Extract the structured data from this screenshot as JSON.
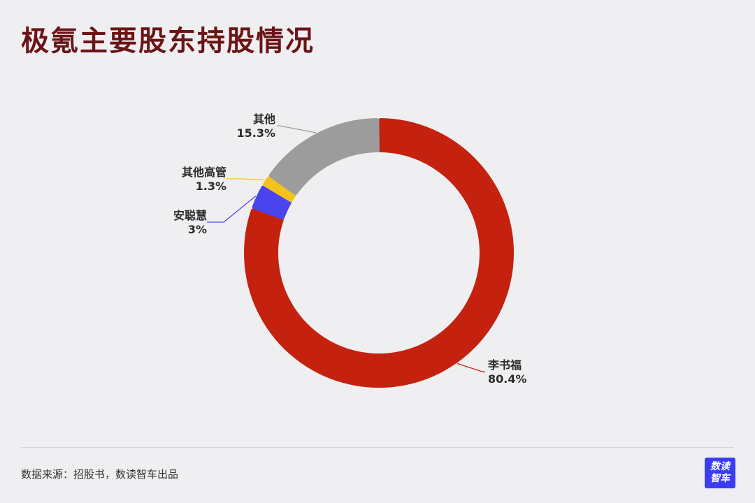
{
  "title": "极氪主要股东持股情况",
  "source": "数据来源：招股书，数读智车出品",
  "logo": {
    "line1": "数读",
    "line2": "智车"
  },
  "chart_data": {
    "type": "pie",
    "style": "donut",
    "title": "极氪主要股东持股情况",
    "slices": [
      {
        "name": "李书福",
        "label": "80.4%",
        "value": 80.4,
        "color": "#c4220f"
      },
      {
        "name": "安聪慧",
        "label": "3%",
        "value": 3.0,
        "color": "#4a44ee"
      },
      {
        "name": "其他高管",
        "label": "1.3%",
        "value": 1.3,
        "color": "#f5c21b"
      },
      {
        "name": "其他",
        "label": "15.3%",
        "value": 15.3,
        "color": "#9c9c9c"
      }
    ]
  }
}
